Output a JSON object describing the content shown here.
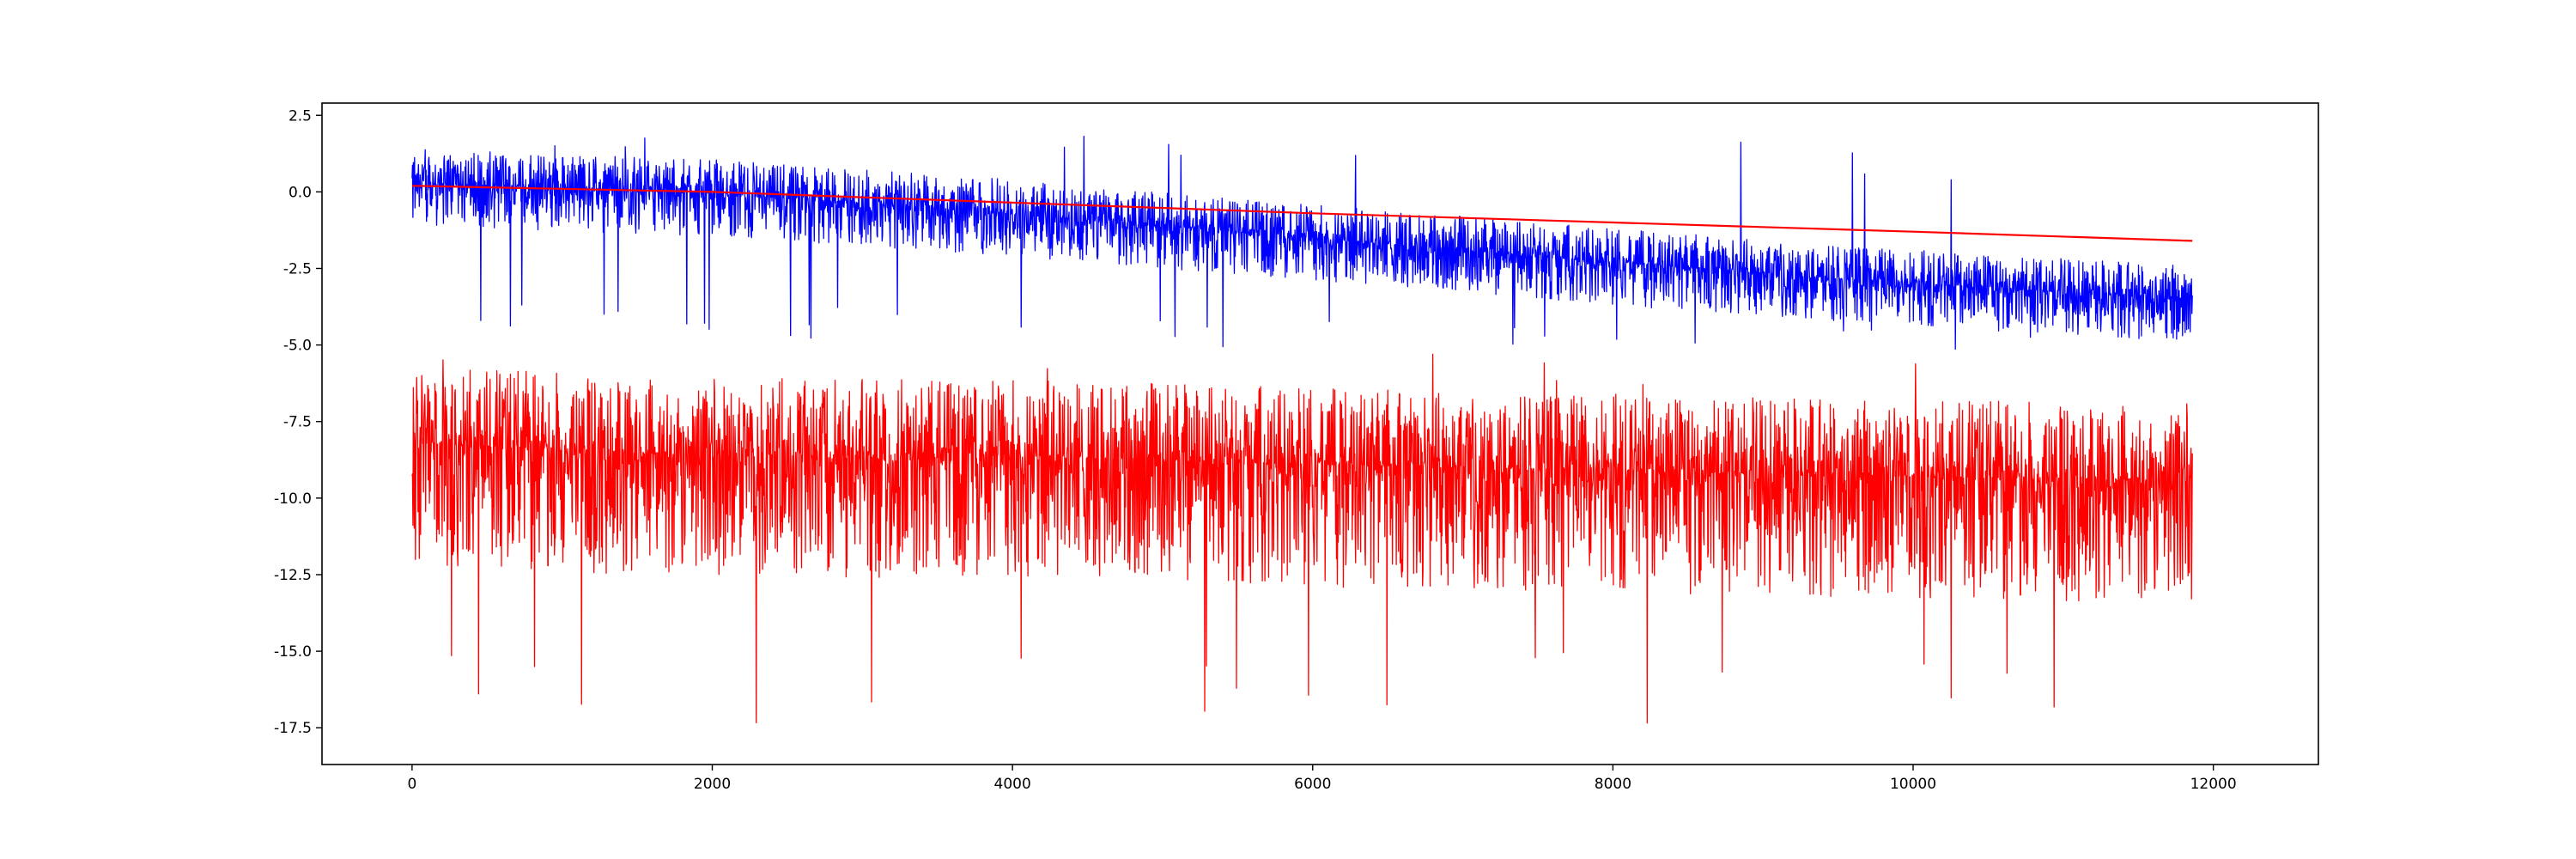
{
  "chart_data": {
    "type": "line",
    "title": "",
    "xlabel": "",
    "ylabel": "",
    "xlim": [
      -600,
      12700
    ],
    "ylim": [
      -18.7,
      2.9
    ],
    "x_ticks": [
      0,
      2000,
      4000,
      6000,
      8000,
      10000,
      12000
    ],
    "x_tick_labels": [
      "0",
      "2000",
      "4000",
      "6000",
      "8000",
      "10000",
      "12000"
    ],
    "y_ticks": [
      2.5,
      0.0,
      -2.5,
      -5.0,
      -7.5,
      -10.0,
      -12.5,
      -15.0,
      -17.5
    ],
    "y_tick_labels": [
      "2.5",
      "0.0",
      "-2.5",
      "-5.0",
      "-7.5",
      "-10.0",
      "-12.5",
      "-15.0",
      "-17.5"
    ],
    "grid": false,
    "series": [
      {
        "color": "#0000ff",
        "description": "noisy signal, ~11860 points, decreasing trend",
        "x_range": [
          0,
          11860
        ],
        "trend": [
          [
            0,
            0.3
          ],
          [
            2000,
            -0.05
          ],
          [
            4000,
            -0.7
          ],
          [
            6000,
            -1.5
          ],
          [
            8000,
            -2.3
          ],
          [
            10000,
            -3.0
          ],
          [
            11860,
            -3.5
          ]
        ],
        "noise_band": [
          -1.4,
          1.1
        ],
        "extremes": {
          "max": 1.85,
          "min": -5.2
        }
      },
      {
        "color": "#ff0000",
        "description": "smooth trend line",
        "x_range": [
          0,
          11860
        ],
        "points": [
          [
            0,
            0.2
          ],
          [
            2000,
            0.0
          ],
          [
            4000,
            -0.35
          ],
          [
            6000,
            -0.7
          ],
          [
            8000,
            -1.0
          ],
          [
            10000,
            -1.3
          ],
          [
            11860,
            -1.6
          ]
        ]
      },
      {
        "color": "#ff0000",
        "description": "noisy signal, ~11860 points, roughly flat",
        "x_range": [
          0,
          11860
        ],
        "trend": [
          [
            0,
            -8.2
          ],
          [
            2000,
            -8.6
          ],
          [
            4000,
            -8.6
          ],
          [
            6000,
            -8.9
          ],
          [
            8000,
            -9.1
          ],
          [
            10000,
            -9.3
          ],
          [
            11860,
            -9.4
          ]
        ],
        "noise_band": [
          -4.0,
          2.5
        ],
        "extremes": {
          "max": -5.1,
          "min": -17.6
        }
      }
    ]
  }
}
